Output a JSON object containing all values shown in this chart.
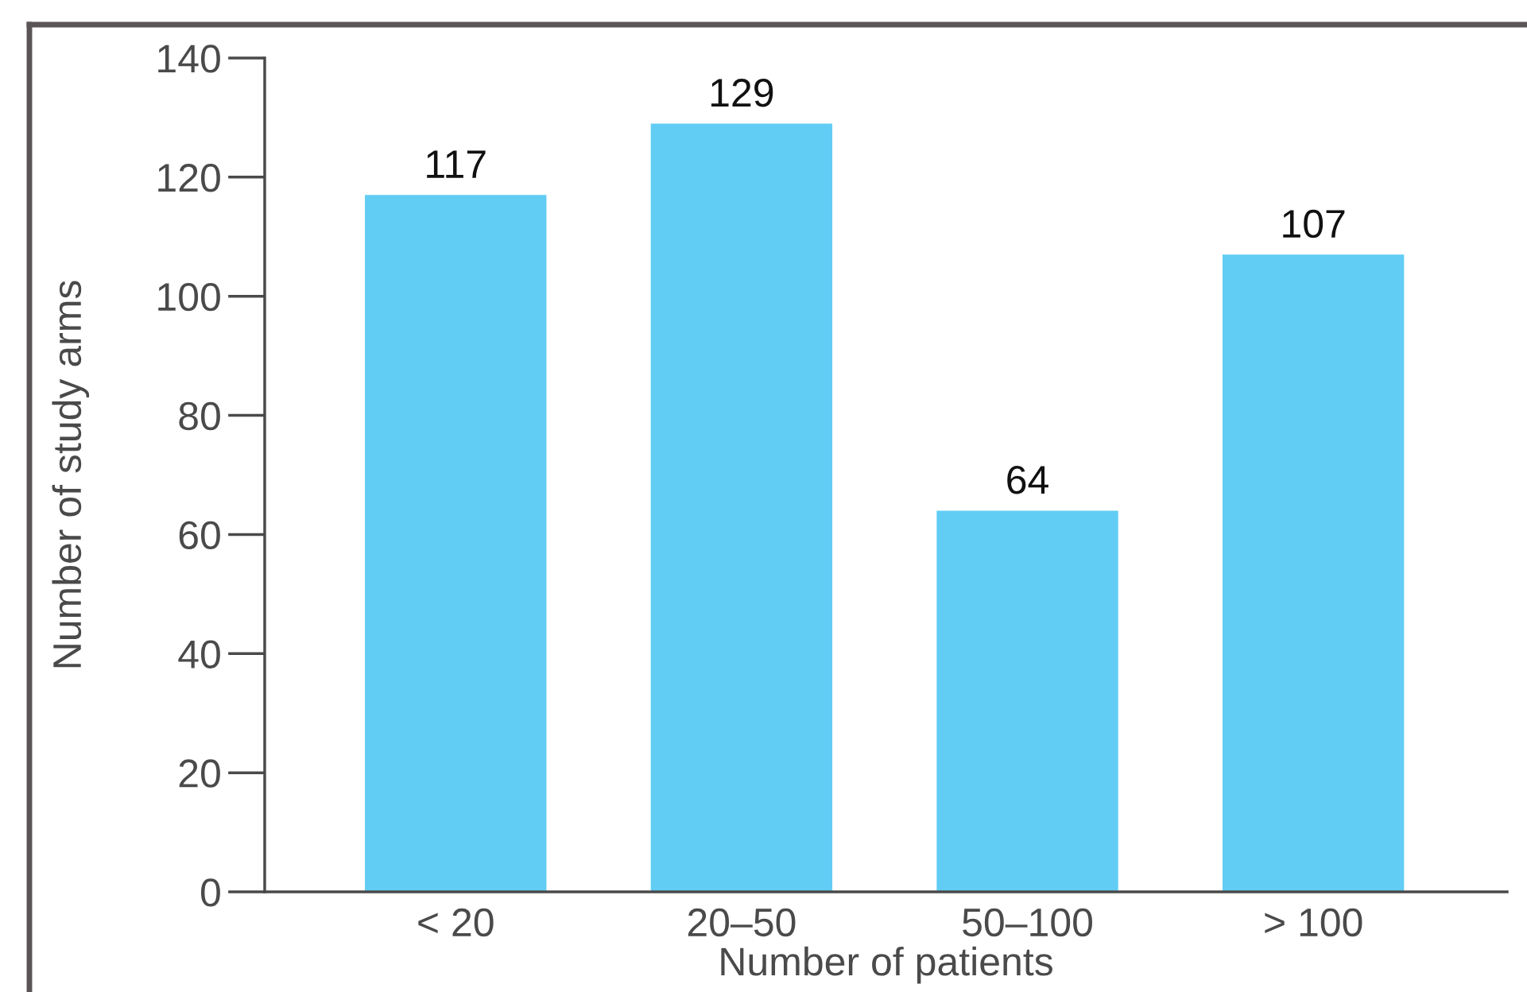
{
  "chart_data": {
    "type": "bar",
    "xlabel": "Number of patients",
    "ylabel": "Number of study arms",
    "categories": [
      "< 20",
      "20–50",
      "50–100",
      "> 100"
    ],
    "values": [
      117,
      129,
      64,
      107
    ],
    "color": "#62cdf4",
    "ylim": [
      0,
      140
    ],
    "yticks": [
      0,
      20,
      40,
      60,
      80,
      100,
      120,
      140
    ],
    "grid": false,
    "data_labels": true
  }
}
